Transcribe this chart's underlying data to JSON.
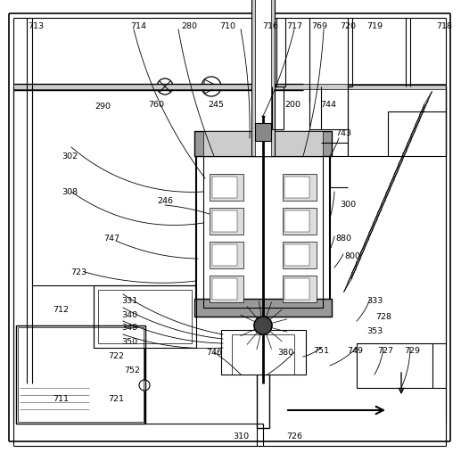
{
  "bg_color": "#ffffff",
  "lc": "#000000",
  "gray": "#888888",
  "lgray": "#aaaaaa",
  "dgray": "#555555"
}
